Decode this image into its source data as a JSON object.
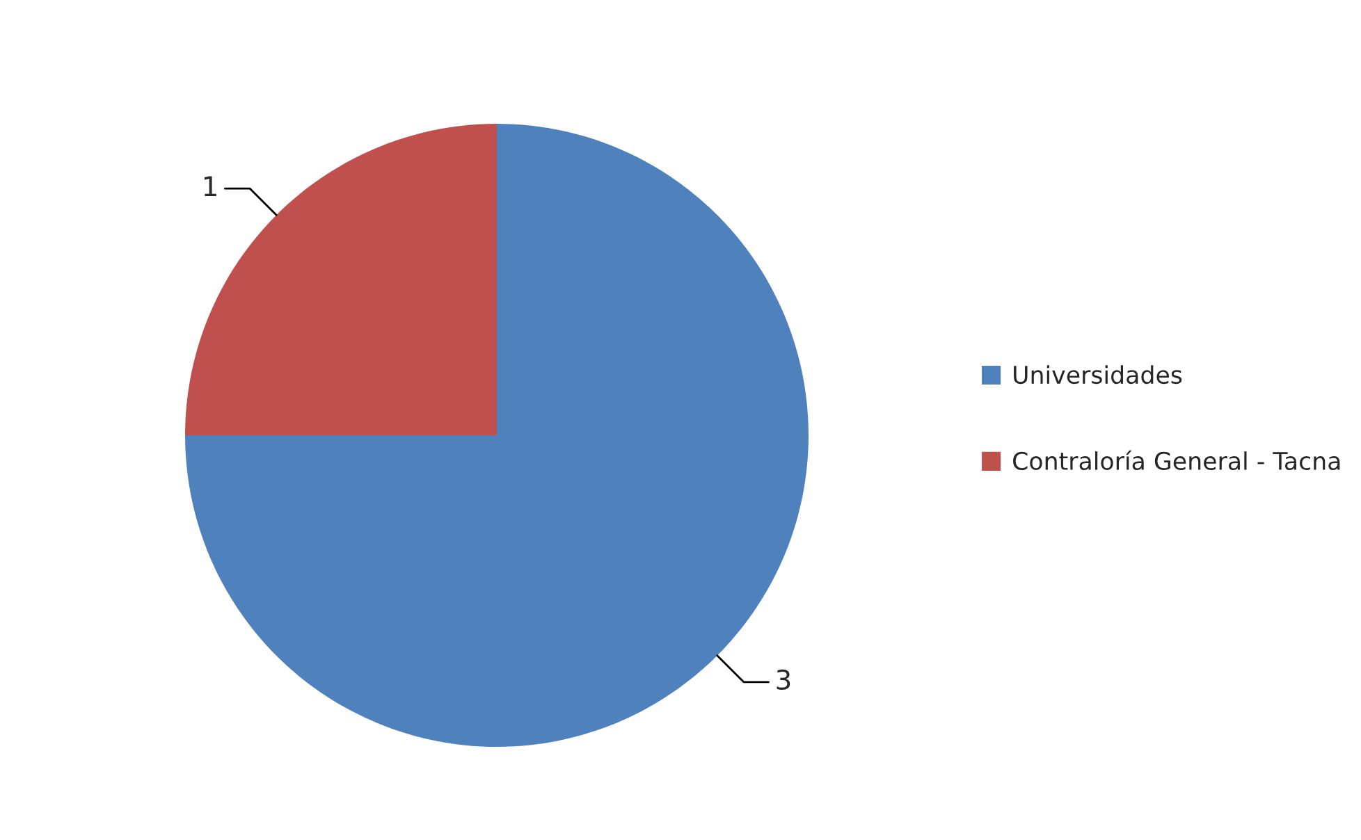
{
  "chart_data": {
    "type": "pie",
    "categories": [
      "Universidades",
      "Contraloría General - Tacna"
    ],
    "values": [
      3,
      1
    ],
    "colors": [
      "#4f81bd",
      "#c0504d"
    ],
    "data_labels": true,
    "legend": "right"
  }
}
